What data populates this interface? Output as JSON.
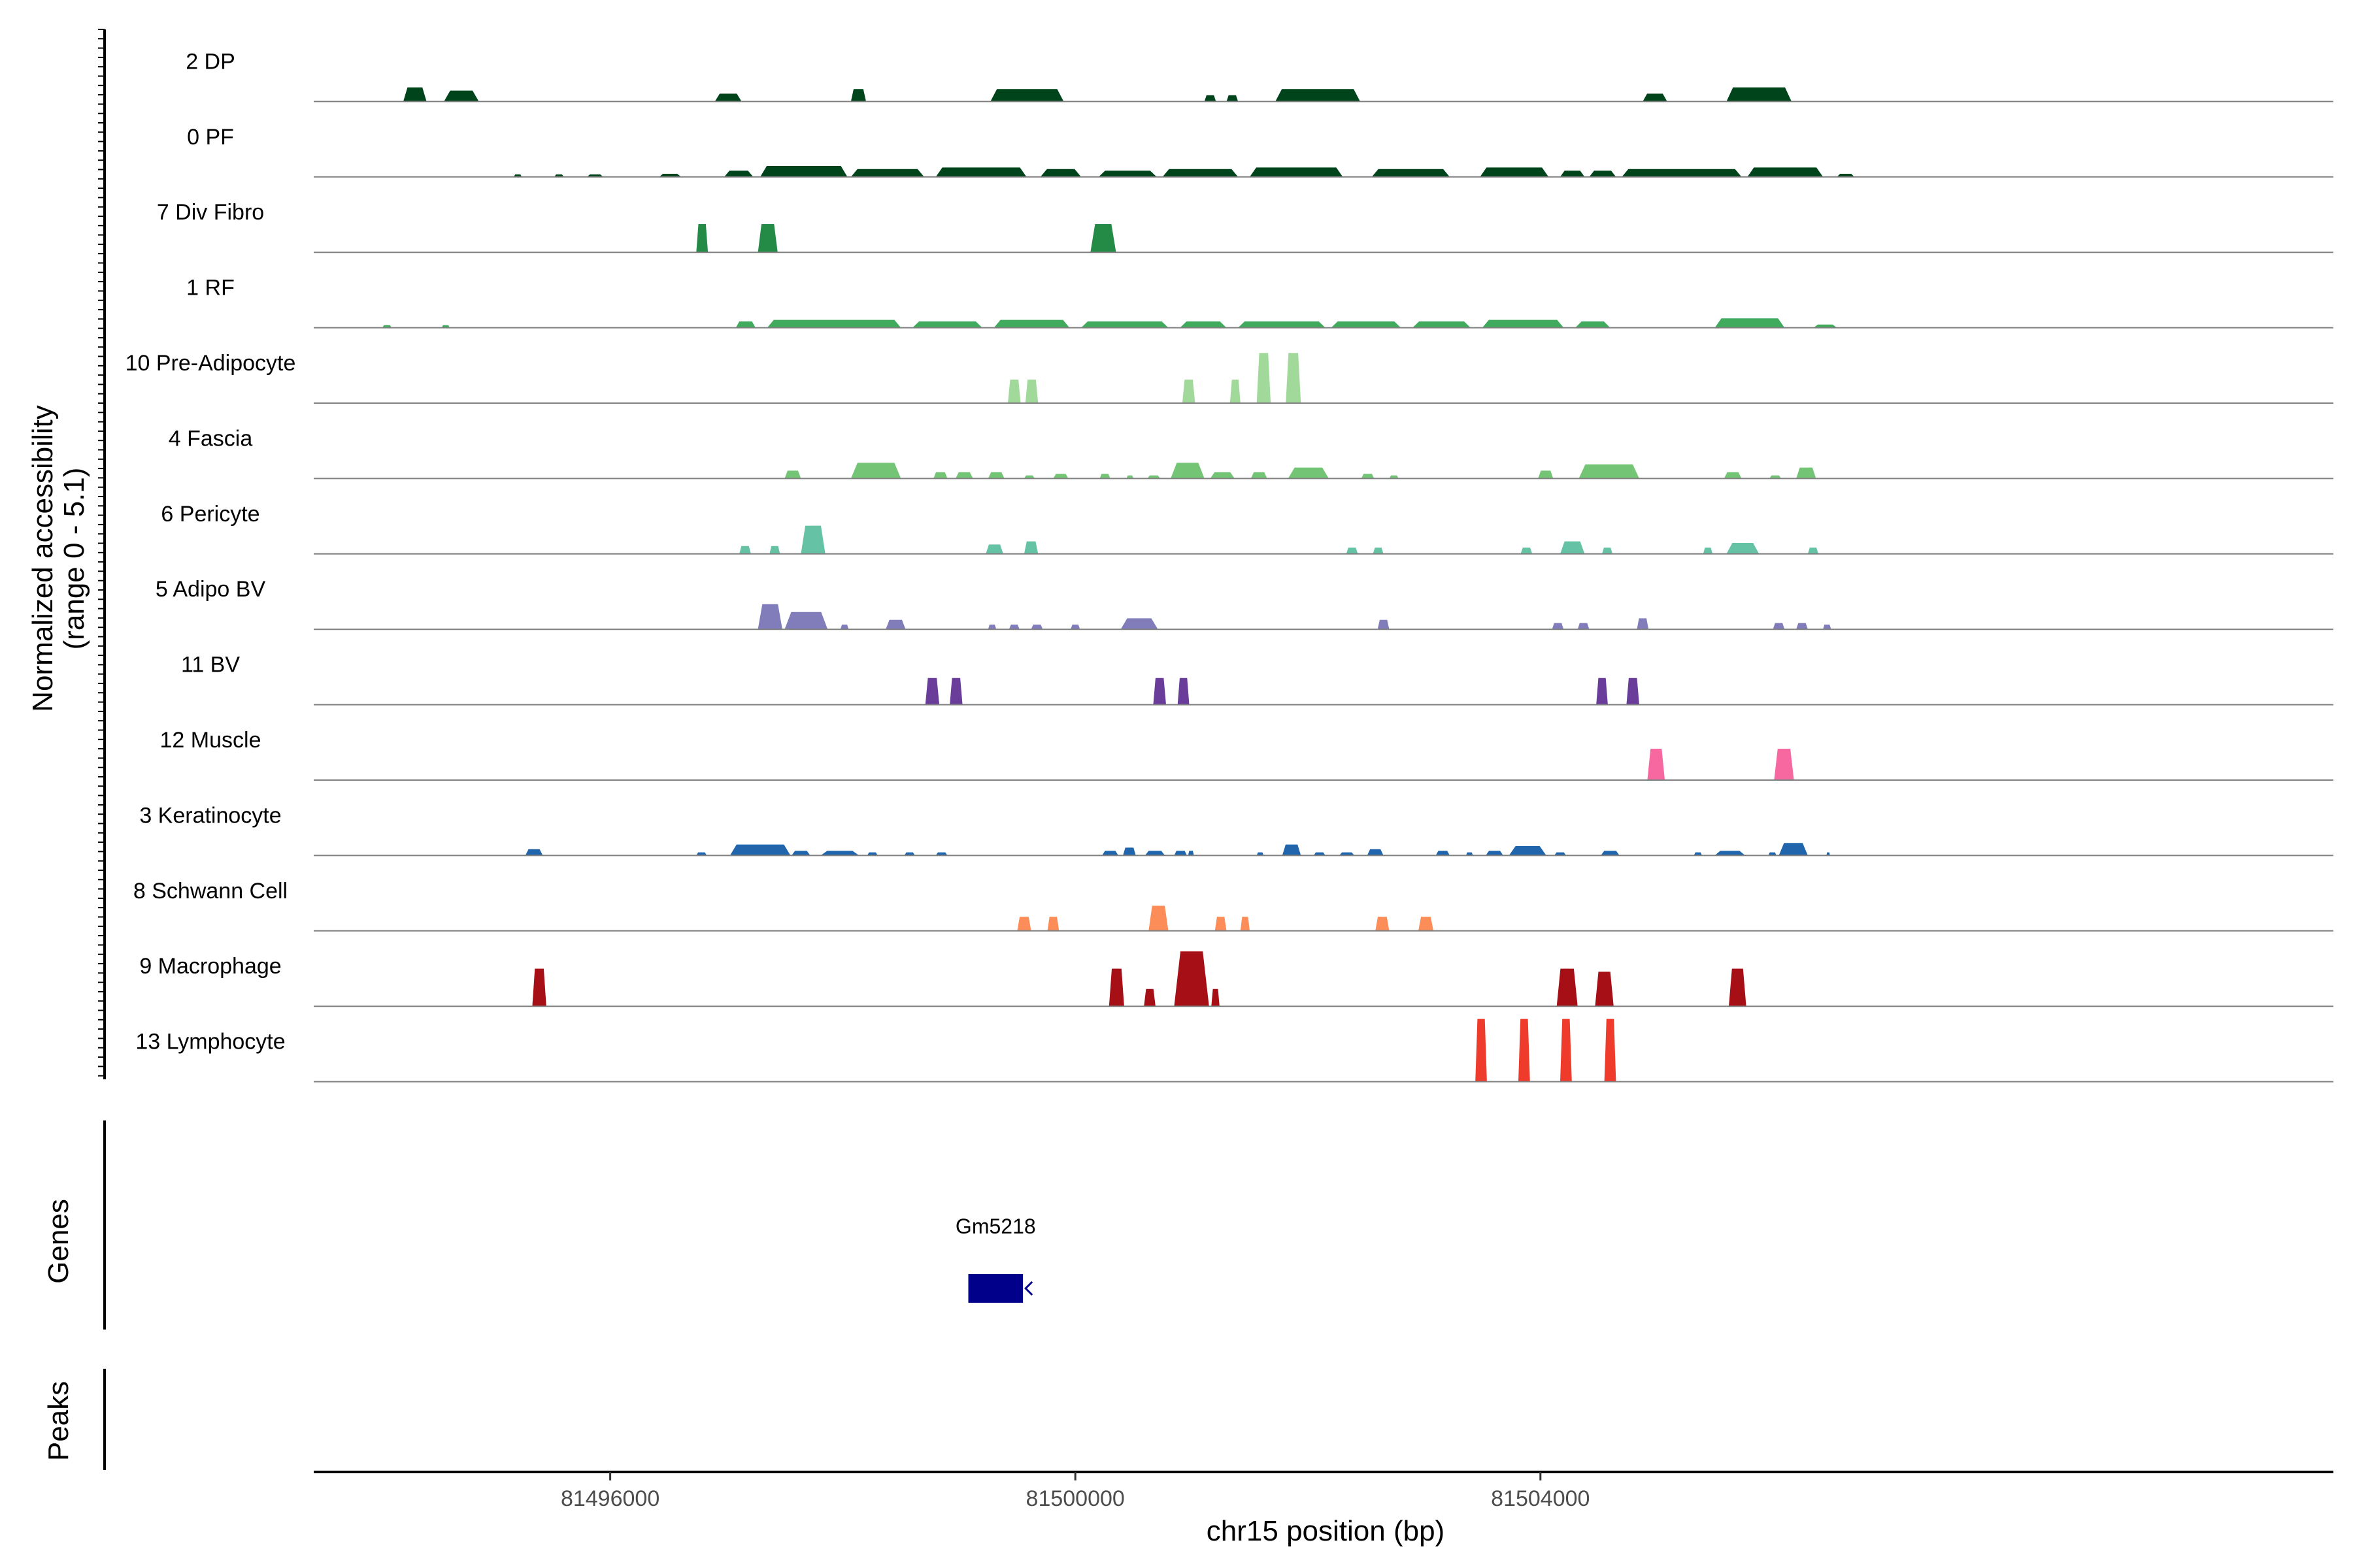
{
  "chart_data": {
    "type": "area",
    "chromosome": "chr15",
    "xlabel": "chr15 position (bp)",
    "ylabel_line1": "Normalized accessibility",
    "ylabel_line2": "(range 0 - 5.1)",
    "y_range": [
      0,
      5.1
    ],
    "xlim": [
      81493450,
      81510820
    ],
    "x_ticks": [
      81496000,
      81500000,
      81504000
    ],
    "x_tick_labels": [
      "81496000",
      "81500000",
      "81504000"
    ],
    "panel_labels": {
      "genes": "Genes",
      "peaks": "Peaks"
    },
    "genes": [
      {
        "name": "Gm5218",
        "start": 81499080,
        "end": 81499550,
        "strand": "-"
      }
    ],
    "series": [
      {
        "name": "2 DP",
        "color": "#00441b",
        "peaks": [
          [
            81494220,
            81494420,
            0.45
          ],
          [
            81494570,
            81494870,
            0.35
          ],
          [
            81496900,
            81497130,
            0.25
          ],
          [
            81498070,
            81498200,
            0.4
          ],
          [
            81499270,
            81499900,
            0.4
          ],
          [
            81501110,
            81501210,
            0.2
          ],
          [
            81501300,
            81501400,
            0.2
          ],
          [
            81501720,
            81502450,
            0.4
          ],
          [
            81504880,
            81505090,
            0.25
          ],
          [
            81505600,
            81506160,
            0.45
          ]
        ]
      },
      {
        "name": "0 PF",
        "color": "#00441b",
        "peaks": [
          [
            81495170,
            81495240,
            0.08
          ],
          [
            81495520,
            81495600,
            0.08
          ],
          [
            81495800,
            81495940,
            0.08
          ],
          [
            81496420,
            81496610,
            0.1
          ],
          [
            81496980,
            81497230,
            0.2
          ],
          [
            81497290,
            81498040,
            0.35
          ],
          [
            81498070,
            81498700,
            0.25
          ],
          [
            81498800,
            81499580,
            0.3
          ],
          [
            81499700,
            81500050,
            0.25
          ],
          [
            81500200,
            81500700,
            0.2
          ],
          [
            81500750,
            81501400,
            0.25
          ],
          [
            81501500,
            81502300,
            0.3
          ],
          [
            81502550,
            81503220,
            0.25
          ],
          [
            81503480,
            81504070,
            0.3
          ],
          [
            81504170,
            81504380,
            0.2
          ],
          [
            81504420,
            81504650,
            0.2
          ],
          [
            81504700,
            81505730,
            0.25
          ],
          [
            81505780,
            81506430,
            0.3
          ],
          [
            81506550,
            81506700,
            0.1
          ]
        ]
      },
      {
        "name": "7 Div Fibro",
        "color": "#238b45",
        "peaks": [
          [
            81496740,
            81496840,
            0.9
          ],
          [
            81497270,
            81497440,
            0.9
          ],
          [
            81500130,
            81500350,
            0.9
          ]
        ]
      },
      {
        "name": "1 RF",
        "color": "#41ab5d",
        "peaks": [
          [
            81494040,
            81494120,
            0.08
          ],
          [
            81494550,
            81494620,
            0.08
          ],
          [
            81497080,
            81497250,
            0.2
          ],
          [
            81497350,
            81498500,
            0.25
          ],
          [
            81498600,
            81499200,
            0.2
          ],
          [
            81499300,
            81499950,
            0.25
          ],
          [
            81500050,
            81500800,
            0.2
          ],
          [
            81500900,
            81501300,
            0.2
          ],
          [
            81501400,
            81502150,
            0.2
          ],
          [
            81502200,
            81502800,
            0.2
          ],
          [
            81502900,
            81503400,
            0.2
          ],
          [
            81503500,
            81504200,
            0.25
          ],
          [
            81504300,
            81504600,
            0.2
          ],
          [
            81505500,
            81506100,
            0.3
          ],
          [
            81506350,
            81506550,
            0.1
          ]
        ]
      },
      {
        "name": "10 Pre-Adipocyte",
        "color": "#a1d99b",
        "peaks": [
          [
            81499420,
            81499530,
            0.75
          ],
          [
            81499570,
            81499680,
            0.75
          ],
          [
            81500920,
            81501030,
            0.75
          ],
          [
            81501330,
            81501420,
            0.75
          ],
          [
            81501560,
            81501680,
            1.6
          ],
          [
            81501810,
            81501940,
            1.6
          ]
        ]
      },
      {
        "name": "4 Fascia",
        "color": "#74c476",
        "peaks": [
          [
            81497500,
            81497640,
            0.25
          ],
          [
            81498070,
            81498500,
            0.5
          ],
          [
            81498780,
            81498900,
            0.2
          ],
          [
            81498970,
            81499120,
            0.2
          ],
          [
            81499250,
            81499390,
            0.2
          ],
          [
            81499560,
            81499650,
            0.1
          ],
          [
            81499810,
            81499940,
            0.15
          ],
          [
            81500210,
            81500300,
            0.15
          ],
          [
            81500440,
            81500500,
            0.1
          ],
          [
            81500620,
            81500730,
            0.1
          ],
          [
            81500820,
            81501110,
            0.5
          ],
          [
            81501160,
            81501370,
            0.2
          ],
          [
            81501510,
            81501650,
            0.2
          ],
          [
            81501830,
            81502180,
            0.35
          ],
          [
            81502460,
            81502570,
            0.15
          ],
          [
            81502700,
            81502780,
            0.1
          ],
          [
            81503980,
            81504110,
            0.25
          ],
          [
            81504330,
            81504850,
            0.45
          ],
          [
            81505580,
            81505730,
            0.2
          ],
          [
            81505970,
            81506070,
            0.1
          ],
          [
            81506200,
            81506370,
            0.35
          ]
        ]
      },
      {
        "name": "6 Pericyte",
        "color": "#66c2a4",
        "peaks": [
          [
            81497110,
            81497210,
            0.25
          ],
          [
            81497370,
            81497460,
            0.25
          ],
          [
            81497640,
            81497850,
            0.9
          ],
          [
            81499230,
            81499380,
            0.3
          ],
          [
            81499560,
            81499680,
            0.4
          ],
          [
            81502330,
            81502430,
            0.2
          ],
          [
            81502560,
            81502650,
            0.2
          ],
          [
            81503830,
            81503930,
            0.2
          ],
          [
            81504170,
            81504380,
            0.4
          ],
          [
            81504530,
            81504620,
            0.2
          ],
          [
            81505400,
            81505480,
            0.2
          ],
          [
            81505600,
            81505880,
            0.35
          ],
          [
            81506300,
            81506390,
            0.2
          ]
        ]
      },
      {
        "name": "5 Adipo BV",
        "color": "#807dba",
        "peaks": [
          [
            81497270,
            81497480,
            0.8
          ],
          [
            81497500,
            81497870,
            0.55
          ],
          [
            81497980,
            81498050,
            0.15
          ],
          [
            81498370,
            81498540,
            0.3
          ],
          [
            81499250,
            81499320,
            0.15
          ],
          [
            81499430,
            81499520,
            0.15
          ],
          [
            81499620,
            81499720,
            0.15
          ],
          [
            81499960,
            81500040,
            0.15
          ],
          [
            81500390,
            81500710,
            0.35
          ],
          [
            81502600,
            81502700,
            0.3
          ],
          [
            81504100,
            81504200,
            0.2
          ],
          [
            81504320,
            81504420,
            0.2
          ],
          [
            81504830,
            81504930,
            0.35
          ],
          [
            81506000,
            81506100,
            0.2
          ],
          [
            81506200,
            81506300,
            0.2
          ],
          [
            81506430,
            81506500,
            0.15
          ]
        ]
      },
      {
        "name": "11 BV",
        "color": "#6a3d9a",
        "peaks": [
          [
            81498710,
            81498830,
            0.85
          ],
          [
            81498920,
            81499030,
            0.85
          ],
          [
            81500670,
            81500780,
            0.85
          ],
          [
            81500880,
            81500980,
            0.85
          ],
          [
            81504480,
            81504580,
            0.85
          ],
          [
            81504740,
            81504850,
            0.85
          ]
        ]
      },
      {
        "name": "12 Muscle",
        "color": "#f768a1",
        "peaks": [
          [
            81504920,
            81505070,
            1.0
          ],
          [
            81506010,
            81506180,
            1.0
          ]
        ]
      },
      {
        "name": "3 Keratinocyte",
        "color": "#2166ac",
        "peaks": [
          [
            81495270,
            81495420,
            0.2
          ],
          [
            81496740,
            81496830,
            0.1
          ],
          [
            81497030,
            81497550,
            0.35
          ],
          [
            81497560,
            81497720,
            0.15
          ],
          [
            81497810,
            81498140,
            0.15
          ],
          [
            81498210,
            81498300,
            0.1
          ],
          [
            81498530,
            81498620,
            0.1
          ],
          [
            81498800,
            81498900,
            0.1
          ],
          [
            81500230,
            81500370,
            0.15
          ],
          [
            81500410,
            81500520,
            0.25
          ],
          [
            81500600,
            81500770,
            0.15
          ],
          [
            81500850,
            81500960,
            0.15
          ],
          [
            81500970,
            81501020,
            0.15
          ],
          [
            81501560,
            81501620,
            0.1
          ],
          [
            81501780,
            81501940,
            0.35
          ],
          [
            81502050,
            81502150,
            0.1
          ],
          [
            81502270,
            81502400,
            0.1
          ],
          [
            81502510,
            81502650,
            0.2
          ],
          [
            81503100,
            81503220,
            0.15
          ],
          [
            81503360,
            81503420,
            0.1
          ],
          [
            81503530,
            81503680,
            0.15
          ],
          [
            81503730,
            81504050,
            0.3
          ],
          [
            81504120,
            81504220,
            0.1
          ],
          [
            81504520,
            81504680,
            0.15
          ],
          [
            81505320,
            81505390,
            0.1
          ],
          [
            81505500,
            81505760,
            0.15
          ],
          [
            81505960,
            81506030,
            0.1
          ],
          [
            81506050,
            81506300,
            0.4
          ],
          [
            81506460,
            81506490,
            0.1
          ]
        ]
      },
      {
        "name": "8 Schwann Cell",
        "color": "#fc8d59",
        "peaks": [
          [
            81499500,
            81499620,
            0.45
          ],
          [
            81499760,
            81499860,
            0.45
          ],
          [
            81500630,
            81500800,
            0.8
          ],
          [
            81501200,
            81501300,
            0.45
          ],
          [
            81501420,
            81501500,
            0.45
          ],
          [
            81502580,
            81502700,
            0.45
          ],
          [
            81502950,
            81503080,
            0.45
          ]
        ]
      },
      {
        "name": "9 Macrophage",
        "color": "#a50f15",
        "peaks": [
          [
            81495330,
            81495450,
            1.2
          ],
          [
            81500290,
            81500420,
            1.2
          ],
          [
            81500590,
            81500690,
            0.55
          ],
          [
            81500850,
            81501150,
            1.75
          ],
          [
            81501170,
            81501240,
            0.55
          ],
          [
            81504140,
            81504320,
            1.2
          ],
          [
            81504470,
            81504630,
            1.1
          ],
          [
            81505620,
            81505770,
            1.2
          ]
        ]
      },
      {
        "name": "13 Lymphocyte",
        "color": "#ef3b2c",
        "peaks": [
          [
            81503440,
            81503540,
            2.0
          ],
          [
            81503810,
            81503910,
            2.0
          ],
          [
            81504170,
            81504270,
            2.0
          ],
          [
            81504550,
            81504650,
            2.0
          ]
        ]
      }
    ]
  }
}
